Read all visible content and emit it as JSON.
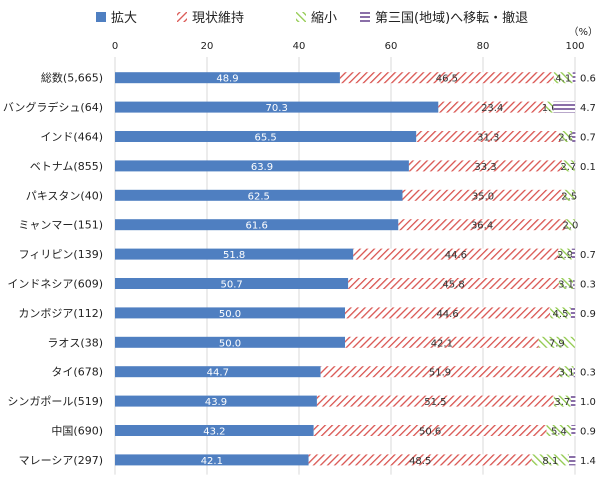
{
  "chart_data": {
    "type": "bar",
    "orientation": "horizontal",
    "stacked": true,
    "unit": "（%）",
    "xlim": [
      0,
      100
    ],
    "xticks": [
      "0",
      "20",
      "40",
      "60",
      "80",
      "100"
    ],
    "grid": true,
    "legend_position": "top",
    "categories": [
      "総数(5,665)",
      "バングラデシュ(64)",
      "インド(464)",
      "ベトナム(855)",
      "パキスタン(40)",
      "ミャンマー(151)",
      "フィリピン(139)",
      "インドネシア(609)",
      "カンボジア(112)",
      "ラオス(38)",
      "タイ(678)",
      "シンガポール(519)",
      "中国(690)",
      "マレーシア(297)"
    ],
    "series": [
      {
        "name": "拡大",
        "color": "#4f7fc1",
        "pattern": "solid",
        "values": [
          48.9,
          70.3,
          65.5,
          63.9,
          62.5,
          61.6,
          51.8,
          50.7,
          50.0,
          50.0,
          44.7,
          43.9,
          43.2,
          42.1
        ],
        "labels": [
          "48.9",
          "70.3",
          "65.5",
          "63.9",
          "62.5",
          "61.6",
          "51.8",
          "50.7",
          "50.0",
          "50.0",
          "44.7",
          "43.9",
          "43.2",
          "42.1"
        ]
      },
      {
        "name": "現状維持",
        "color": "#d9534f",
        "pattern": "diagonal-hatch",
        "values": [
          46.5,
          23.4,
          31.3,
          33.3,
          35.0,
          36.4,
          44.6,
          45.8,
          44.6,
          42.1,
          51.9,
          51.5,
          50.6,
          48.5
        ],
        "labels": [
          "46.5",
          "23.4",
          "31.3",
          "33.3",
          "35.0",
          "36.4",
          "44.6",
          "45.8",
          "44.6",
          "42.1",
          "51.9",
          "51.5",
          "50.6",
          "48.5"
        ]
      },
      {
        "name": "縮小",
        "color": "#8fc94a",
        "pattern": "diagonal-hatch",
        "values": [
          4.1,
          1.6,
          2.6,
          2.7,
          2.5,
          2.0,
          2.9,
          3.1,
          4.5,
          7.9,
          3.1,
          3.7,
          5.4,
          8.1
        ],
        "labels": [
          "4.1",
          "1.6",
          "2.6",
          "2.7",
          "2.5",
          "2.0",
          "2.9",
          "3.1",
          "4.5",
          "7.9",
          "3.1",
          "3.7",
          "5.4",
          "8.1"
        ]
      },
      {
        "name": "第三国(地域)へ移転・撤退",
        "color": "#8a6fa8",
        "pattern": "horizontal-hatch",
        "values": [
          0.6,
          4.7,
          0.7,
          0.1,
          0,
          0,
          0.7,
          0.3,
          0.9,
          0,
          0.3,
          1.0,
          0.9,
          1.4
        ],
        "labels": [
          "0.6",
          "4.7",
          "0.7",
          "0.1",
          "",
          "",
          "0.7",
          "0.3",
          "0.9",
          "",
          "0.3",
          "1.0",
          "0.9",
          "1.4"
        ]
      }
    ]
  }
}
